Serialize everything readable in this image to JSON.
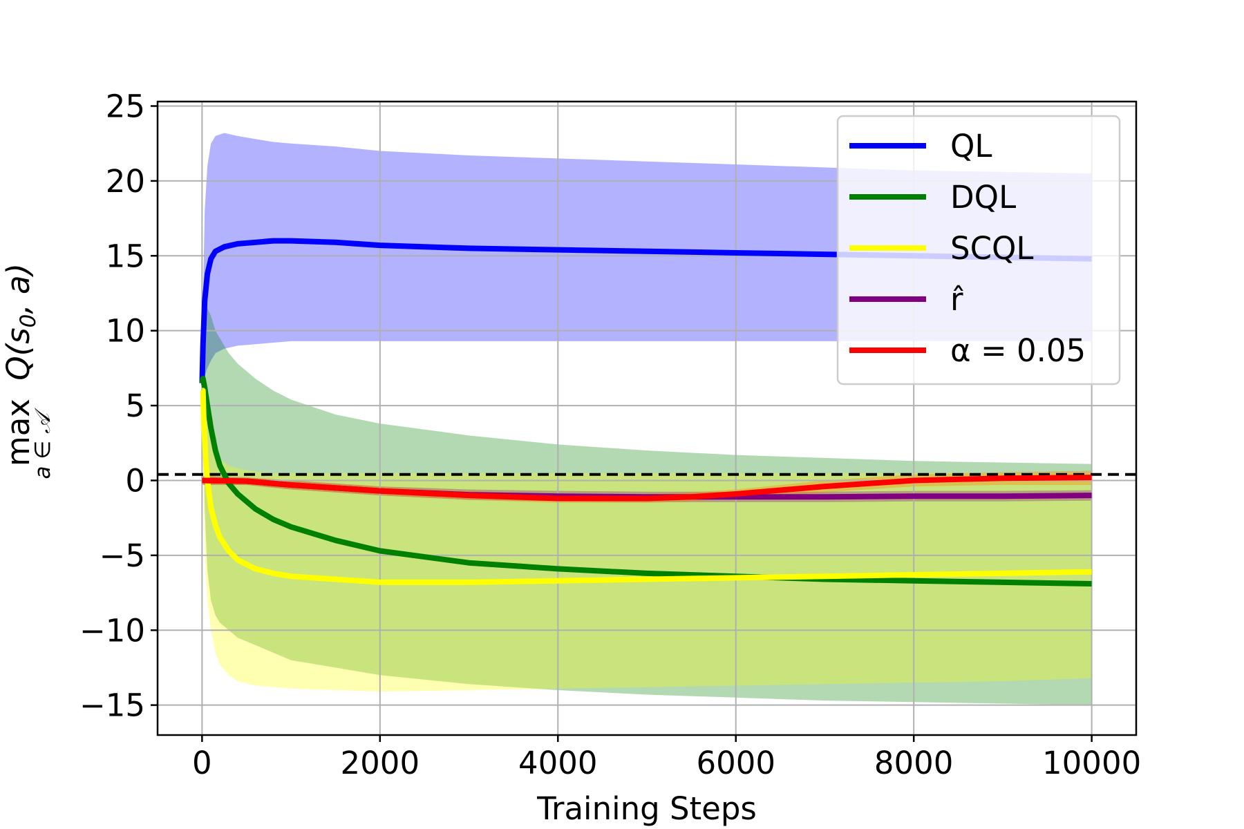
{
  "chart_data": {
    "type": "line",
    "xlabel": "Training Steps",
    "ylabel": {
      "main": "max",
      "expr": "Q(s",
      "subscript0": "0",
      "expr_end": ", a)",
      "under": "a ∈ 𝒜"
    },
    "xlim": [
      -500,
      10500
    ],
    "ylim": [
      -17,
      25.3
    ],
    "xticks": [
      0,
      2000,
      4000,
      6000,
      8000,
      10000
    ],
    "xtick_labels": [
      "0",
      "2000",
      "4000",
      "6000",
      "8000",
      "10000"
    ],
    "yticks": [
      -15,
      -10,
      -5,
      0,
      5,
      10,
      15,
      20,
      25
    ],
    "ytick_labels": [
      "−15",
      "−10",
      "−5",
      "0",
      "5",
      "10",
      "15",
      "20",
      "25"
    ],
    "grid": true,
    "legend_position": "top-right",
    "reference_line": {
      "y": 0.4,
      "style": "dashed",
      "color": "#000000"
    },
    "series": [
      {
        "name": "QL",
        "color": "#0000ff",
        "band_color": "#0000ff",
        "band_opacity": 0.3,
        "x": [
          0,
          10,
          30,
          60,
          100,
          150,
          250,
          400,
          600,
          800,
          1000,
          1500,
          2000,
          3000,
          4000,
          5000,
          6000,
          7000,
          8000,
          9000,
          10000
        ],
        "y": [
          6.5,
          9,
          12,
          13.8,
          14.8,
          15.3,
          15.6,
          15.8,
          15.9,
          16.0,
          16.0,
          15.9,
          15.7,
          15.5,
          15.4,
          15.3,
          15.2,
          15.1,
          15.0,
          14.9,
          14.8
        ],
        "lower": [
          6,
          6.5,
          7,
          7.5,
          8,
          8.5,
          8.8,
          9.0,
          9.1,
          9.2,
          9.3,
          9.3,
          9.3,
          9.3,
          9.3,
          9.3,
          9.3,
          9.3,
          9.3,
          9.3,
          9.3
        ],
        "upper": [
          7,
          12,
          18,
          21,
          22.5,
          23.0,
          23.2,
          23.0,
          22.8,
          22.6,
          22.5,
          22.3,
          22.0,
          21.7,
          21.5,
          21.3,
          21.1,
          20.9,
          20.7,
          20.6,
          20.5
        ]
      },
      {
        "name": "DQL",
        "color": "#008000",
        "band_color": "#008000",
        "band_opacity": 0.3,
        "x": [
          0,
          10,
          30,
          60,
          100,
          150,
          200,
          300,
          400,
          600,
          800,
          1000,
          1500,
          2000,
          3000,
          4000,
          5000,
          6000,
          7000,
          8000,
          9000,
          10000
        ],
        "y": [
          6.5,
          6.8,
          6.2,
          5.0,
          3.5,
          2.0,
          1.0,
          -0.2,
          -0.9,
          -1.9,
          -2.6,
          -3.1,
          -4.0,
          -4.7,
          -5.5,
          -5.9,
          -6.2,
          -6.4,
          -6.6,
          -6.7,
          -6.8,
          -6.9
        ],
        "lower": [
          6.0,
          4.0,
          -2.0,
          -6.0,
          -8.0,
          -9.0,
          -9.5,
          -10.0,
          -10.5,
          -11.0,
          -11.5,
          -12.0,
          -12.5,
          -13.0,
          -13.6,
          -14.0,
          -14.3,
          -14.5,
          -14.7,
          -14.8,
          -14.9,
          -15.0
        ],
        "upper": [
          7.0,
          9.0,
          11.0,
          11.5,
          11.0,
          10.0,
          9.5,
          8.5,
          7.8,
          6.8,
          6.0,
          5.4,
          4.4,
          3.8,
          3.0,
          2.4,
          2.0,
          1.7,
          1.5,
          1.3,
          1.2,
          1.1
        ]
      },
      {
        "name": "SCQL",
        "color": "#ffff00",
        "band_color": "#ffff00",
        "band_opacity": 0.3,
        "x": [
          0,
          10,
          20,
          40,
          60,
          100,
          150,
          200,
          300,
          400,
          600,
          800,
          1000,
          1500,
          2000,
          3000,
          4000,
          5000,
          6000,
          7000,
          8000,
          9000,
          10000
        ],
        "y": [
          6.0,
          6.0,
          4.0,
          1.5,
          0.0,
          -1.8,
          -3.0,
          -3.8,
          -4.7,
          -5.3,
          -5.9,
          -6.2,
          -6.4,
          -6.6,
          -6.8,
          -6.8,
          -6.7,
          -6.6,
          -6.5,
          -6.4,
          -6.3,
          -6.2,
          -6.1
        ],
        "lower": [
          5.5,
          3.0,
          -2.0,
          -6.0,
          -8.0,
          -10.0,
          -11.5,
          -12.3,
          -13.0,
          -13.4,
          -13.7,
          -13.8,
          -13.9,
          -14.0,
          -14.1,
          -14.0,
          -13.9,
          -13.8,
          -13.7,
          -13.6,
          -13.5,
          -13.4,
          -13.2
        ],
        "upper": [
          6.5,
          7.0,
          6.5,
          5.0,
          4.0,
          2.5,
          1.8,
          1.4,
          1.0,
          0.8,
          0.6,
          0.5,
          0.5,
          0.5,
          0.5,
          0.5,
          0.5,
          0.5,
          0.5,
          0.5,
          0.5,
          0.5,
          0.5
        ]
      },
      {
        "name": "r̂",
        "color": "#800080",
        "band_color": "#800080",
        "band_opacity": 0.3,
        "x": [
          0,
          500,
          1000,
          2000,
          3000,
          4000,
          5000,
          6000,
          7000,
          8000,
          9000,
          10000
        ],
        "y": [
          0.0,
          -0.05,
          -0.3,
          -0.7,
          -0.95,
          -1.05,
          -1.1,
          -1.1,
          -1.1,
          -1.05,
          -1.05,
          -1.0
        ],
        "lower": [
          -0.3,
          -0.3,
          -0.6,
          -1.0,
          -1.3,
          -1.4,
          -1.45,
          -1.45,
          -1.45,
          -1.4,
          -1.4,
          -1.35
        ],
        "upper": [
          0.3,
          0.2,
          0.0,
          -0.4,
          -0.6,
          -0.7,
          -0.75,
          -0.75,
          -0.75,
          -0.7,
          -0.7,
          -0.65
        ]
      },
      {
        "name": "α = 0.05",
        "color": "#ff0000",
        "band_color": "#ff8000",
        "band_opacity": 0.35,
        "x": [
          0,
          500,
          1000,
          2000,
          3000,
          4000,
          5000,
          5500,
          6000,
          7000,
          8000,
          9000,
          10000
        ],
        "y": [
          0.0,
          -0.05,
          -0.3,
          -0.7,
          -1.0,
          -1.2,
          -1.2,
          -1.1,
          -0.9,
          -0.4,
          0.0,
          0.15,
          0.2
        ],
        "lower": [
          -0.3,
          -0.3,
          -0.6,
          -1.0,
          -1.3,
          -1.5,
          -1.5,
          -1.4,
          -1.2,
          -0.8,
          -0.4,
          -0.3,
          -0.3
        ],
        "upper": [
          0.3,
          0.2,
          0.0,
          -0.4,
          -0.7,
          -0.9,
          -0.9,
          -0.8,
          -0.6,
          0.0,
          0.4,
          0.55,
          0.65
        ]
      }
    ]
  }
}
